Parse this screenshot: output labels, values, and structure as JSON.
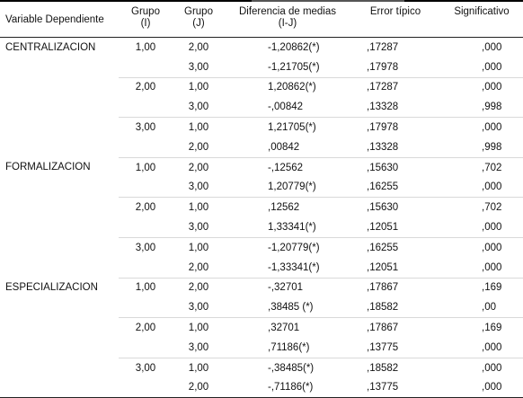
{
  "header": {
    "variable": "Variable Dependiente",
    "group_i": [
      "Grupo",
      "(I)"
    ],
    "group_j": [
      "Grupo",
      "(J)"
    ],
    "difference": [
      "Diferencia de medias",
      "(I-J)"
    ],
    "error": "Error típico",
    "significance": "Significativo"
  },
  "rows": [
    {
      "variable": "CENTRALIZACION",
      "group_i": "1,00",
      "group_j": "2,00",
      "diff": "-1,20862(*)",
      "error": ",17287",
      "sig": ",000"
    },
    {
      "variable": "",
      "group_i": "",
      "group_j": "3,00",
      "diff": "-1,21705(*)",
      "error": ",17978",
      "sig": ",000"
    },
    {
      "variable": "",
      "group_i": "2,00",
      "group_j": "1,00",
      "diff": "1,20862(*)",
      "error": ",17287",
      "sig": ",000"
    },
    {
      "variable": "",
      "group_i": "",
      "group_j": "3,00",
      "diff": "-,00842",
      "error": ",13328",
      "sig": ",998"
    },
    {
      "variable": "",
      "group_i": "3,00",
      "group_j": "1,00",
      "diff": "1,21705(*)",
      "error": ",17978",
      "sig": ",000"
    },
    {
      "variable": "",
      "group_i": "",
      "group_j": "2,00",
      "diff": ",00842",
      "error": ",13328",
      "sig": ",998"
    },
    {
      "variable": "FORMALIZACION",
      "group_i": "1,00",
      "group_j": "2,00",
      "diff": "-,12562",
      "error": ",15630",
      "sig": ",702"
    },
    {
      "variable": "",
      "group_i": "",
      "group_j": "3,00",
      "diff": "1,20779(*)",
      "error": ",16255",
      "sig": ",000"
    },
    {
      "variable": "",
      "group_i": "2,00",
      "group_j": "1,00",
      "diff": ",12562",
      "error": ",15630",
      "sig": ",702"
    },
    {
      "variable": "",
      "group_i": "",
      "group_j": "3,00",
      "diff": "1,33341(*)",
      "error": ",12051",
      "sig": ",000"
    },
    {
      "variable": "",
      "group_i": "3,00",
      "group_j": "1,00",
      "diff": "-1,20779(*)",
      "error": ",16255",
      "sig": ",000"
    },
    {
      "variable": "",
      "group_i": "",
      "group_j": "2,00",
      "diff": "-1,33341(*)",
      "error": ",12051",
      "sig": ",000"
    },
    {
      "variable": "ESPECIALIZACION",
      "group_i": "1,00",
      "group_j": "2,00",
      "diff": "-,32701",
      "error": ",17867",
      "sig": ",169"
    },
    {
      "variable": "",
      "group_i": "",
      "group_j": "3,00",
      "diff": ",38485 (*)",
      "error": ",18582",
      "sig": ",00"
    },
    {
      "variable": "",
      "group_i": "2,00",
      "group_j": "1,00",
      "diff": ",32701",
      "error": ",17867",
      "sig": ",169"
    },
    {
      "variable": "",
      "group_i": "",
      "group_j": "3,00",
      "diff": ",71186(*)",
      "error": ",13775",
      "sig": ",000"
    },
    {
      "variable": "",
      "group_i": "3,00",
      "group_j": "1,00",
      "diff": "-,38485(*)",
      "error": ",18582",
      "sig": ",000"
    },
    {
      "variable": "",
      "group_i": "",
      "group_j": "2,00",
      "diff": "-,71186(*)",
      "error": ",13775",
      "sig": ",000"
    }
  ]
}
